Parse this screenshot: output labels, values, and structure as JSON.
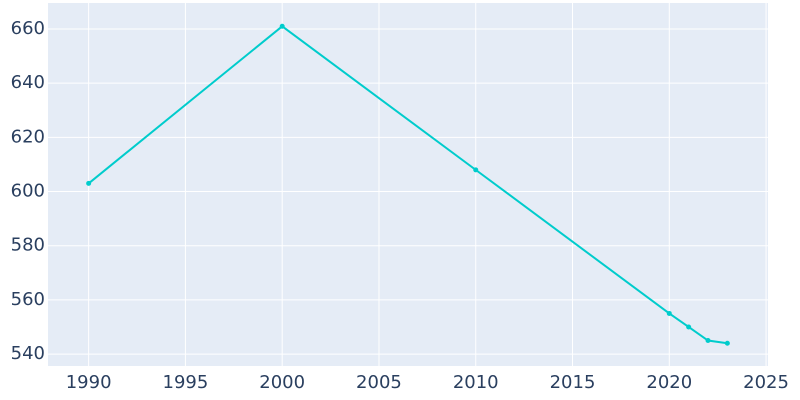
{
  "chart_data": {
    "type": "line",
    "x": [
      1990,
      2000,
      2010,
      2020,
      2021,
      2022,
      2023
    ],
    "series": [
      {
        "color": "#00cccc",
        "values": [
          603,
          661,
          608,
          555,
          550,
          545,
          544
        ]
      }
    ],
    "xlim": [
      1987.9,
      2025.1
    ],
    "xticks": [
      1990,
      1995,
      2000,
      2005,
      2010,
      2015,
      2020,
      2025
    ],
    "ylim": [
      535.6,
      669.6
    ],
    "yticks": [
      540,
      560,
      580,
      600,
      620,
      640,
      660
    ],
    "grid": true,
    "background": "#e5ecf6"
  }
}
